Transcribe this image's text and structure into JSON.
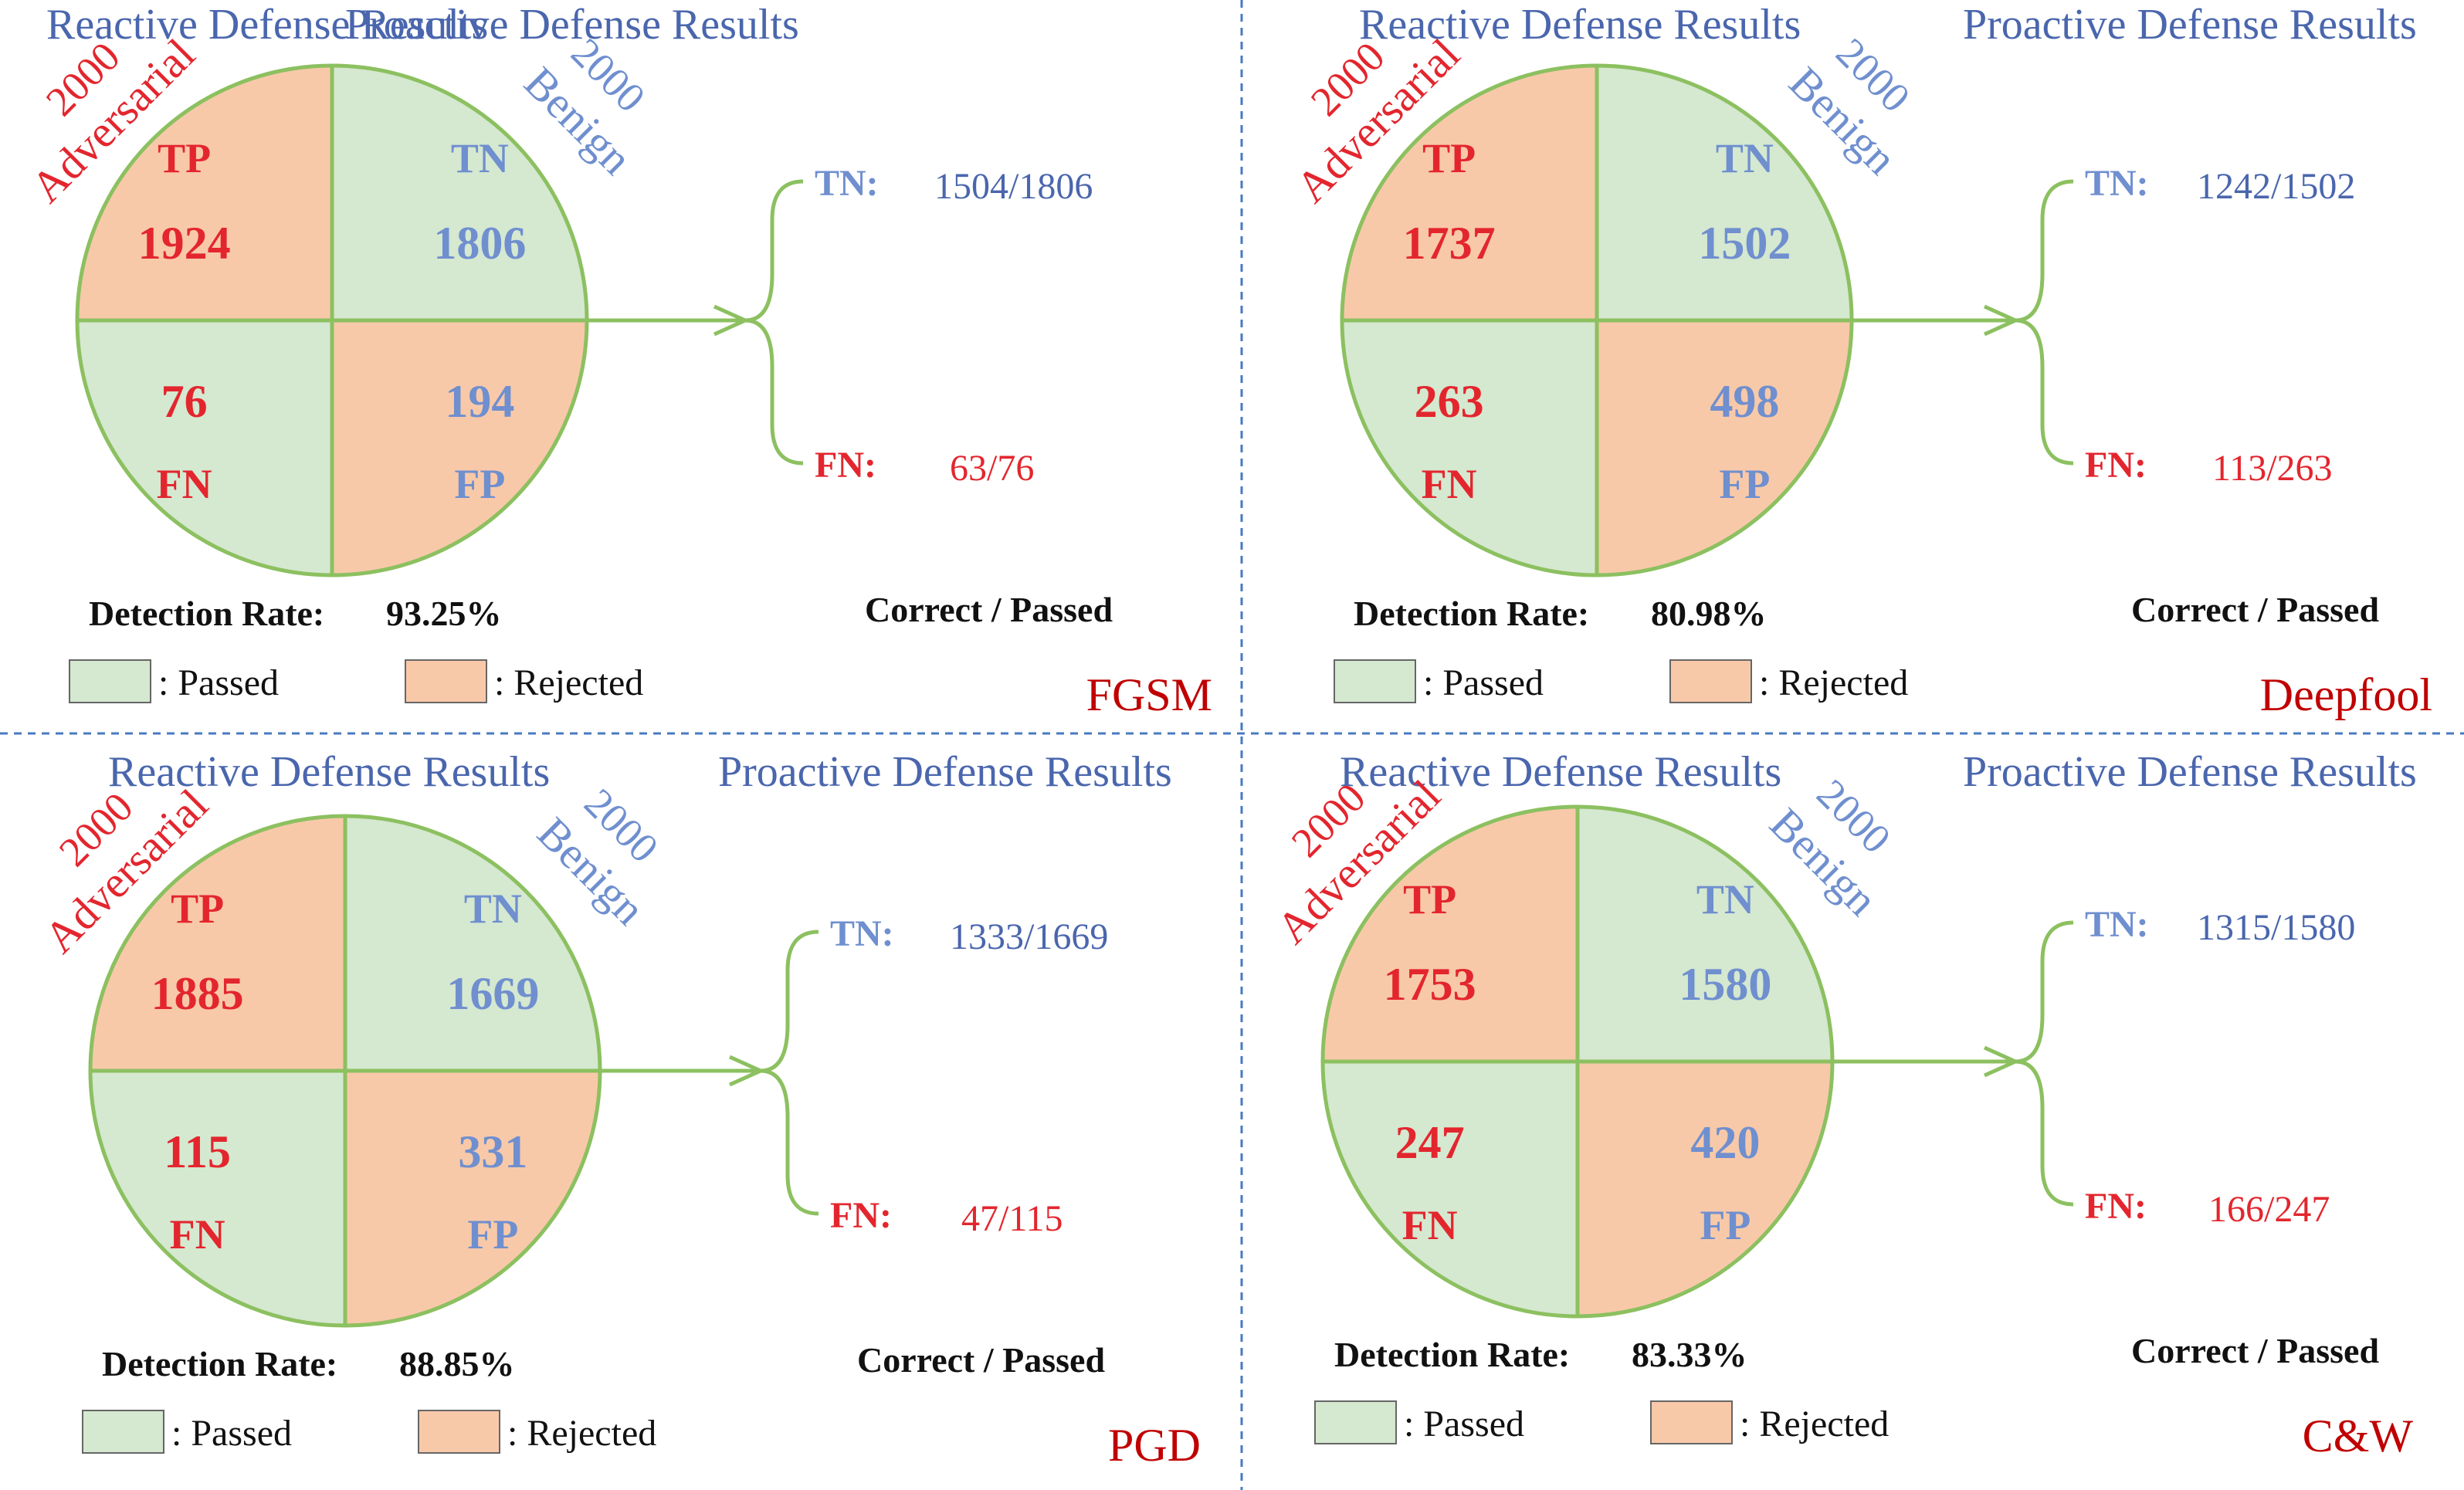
{
  "colors": {
    "passed_fill": "#d5e8d0",
    "rejected_fill": "#f8c9a9",
    "circle_stroke": "#8cc060",
    "red": "#e3262e",
    "blue": "#6f8fcf",
    "title_blue": "#4a66ad",
    "dark_red": "#c00000",
    "divider": "#4a7ac0",
    "black": "#111111"
  },
  "shared": {
    "reactive_title": "Reactive Defense Results",
    "proactive_title": "Proactive Defense Results",
    "adversarial_count": "2000",
    "adversarial_label": "Adversarial",
    "benign_count": "2000",
    "benign_label": "Benign",
    "tp_label": "TP",
    "tn_label": "TN",
    "fn_label": "FN",
    "fp_label": "FP",
    "tn_prefix": "TN:",
    "fn_prefix": "FN:",
    "detection_rate_label": "Detection Rate:",
    "correct_passed": "Correct / Passed",
    "passed_legend": ": Passed",
    "rejected_legend": ": Rejected"
  },
  "panels": [
    {
      "attack": "FGSM",
      "tp": "1924",
      "tn": "1806",
      "fn": "76",
      "fp": "194",
      "detection_rate": "93.25%",
      "proactive_tn": "1504/1806",
      "proactive_fn": "63/76"
    },
    {
      "attack": "Deepfool",
      "tp": "1737",
      "tn": "1502",
      "fn": "263",
      "fp": "498",
      "detection_rate": "80.98%",
      "proactive_tn": "1242/1502",
      "proactive_fn": "113/263"
    },
    {
      "attack": "PGD",
      "tp": "1885",
      "tn": "1669",
      "fn": "115",
      "fp": "331",
      "detection_rate": "88.85%",
      "proactive_tn": "1333/1669",
      "proactive_fn": "47/115"
    },
    {
      "attack": "C&W",
      "tp": "1753",
      "tn": "1580",
      "fn": "247",
      "fp": "420",
      "detection_rate": "83.33%",
      "proactive_tn": "1315/1580",
      "proactive_fn": "166/247"
    }
  ]
}
